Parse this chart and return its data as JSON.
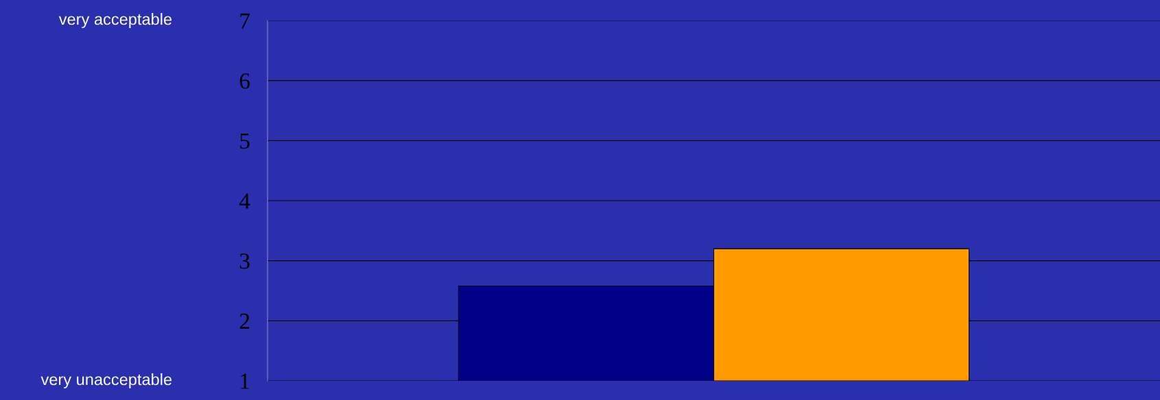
{
  "chart_data": {
    "type": "bar",
    "categories": [
      null
    ],
    "series": [
      {
        "color": "#000088",
        "values": [
          2.58
        ]
      },
      {
        "color": "#ff9900",
        "values": [
          3.2
        ]
      }
    ],
    "ylim": [
      1,
      7
    ],
    "yticks": [
      1,
      2,
      3,
      4,
      5,
      6,
      7
    ],
    "grid": "y",
    "annotations": [
      "very acceptable",
      "very unacceptable"
    ]
  }
}
